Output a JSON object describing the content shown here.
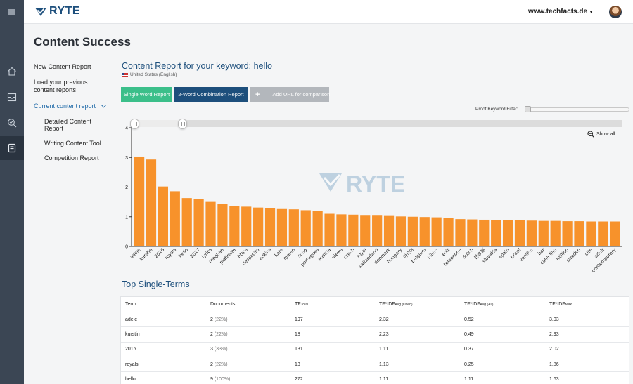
{
  "app": {
    "brand": "RYTE",
    "domain": "www.techfacts.de",
    "page_title": "Content Success"
  },
  "colors": {
    "rail": "#3b4654",
    "brand": "#1d4f7c",
    "bar": "#f7922b",
    "green_button": "#3bbf8a",
    "gray_button": "#b3b7bc"
  },
  "rail_icons": [
    "menu-icon",
    "home-icon",
    "inbox-icon",
    "search-check-icon",
    "document-icon"
  ],
  "left_nav": {
    "items": [
      {
        "label": "New Content Report"
      },
      {
        "label": "Load your previous"
      },
      {
        "label": "content reports"
      },
      {
        "label": "Current content report"
      },
      {
        "label": "Detailed Content"
      },
      {
        "label": "Report"
      },
      {
        "label": "Writing Content Tool"
      },
      {
        "label": "Competition Report"
      }
    ]
  },
  "report": {
    "title": "Content Report for your keyword: hello",
    "locale": "United States (English)",
    "buttons": {
      "single": "Single Word Report",
      "two_word": "2-Word Combination Report",
      "add_plus": "+",
      "add_url": "Add URL for comparison"
    },
    "filter_label": "Proof Keyword Filter:",
    "show_all": "Show all",
    "watermark": "RYTE"
  },
  "chart_data": {
    "type": "bar",
    "ylim": [
      0,
      4
    ],
    "yticks": [
      0,
      1,
      2,
      3,
      4
    ],
    "categories": [
      "adele",
      "kurstin",
      "2016",
      "royals",
      "hello",
      "2017",
      "lyrics",
      "meghan",
      "platinum",
      "https",
      "despacito",
      "adkins",
      "kate",
      "queen",
      "song",
      "portugués",
      "austria",
      "views",
      "czech",
      "royal",
      "switzerland",
      "denmark",
      "hungary",
      "한국어",
      "belgium",
      "piano",
      "edit",
      "telephone",
      "dutch",
      "日本語",
      "slovakia",
      "spain",
      "brazil",
      "version",
      "bar",
      "canadian",
      "million",
      "sweden",
      "cite",
      "adult",
      "contemporary"
    ],
    "values": [
      3.03,
      2.93,
      2.02,
      1.86,
      1.63,
      1.6,
      1.5,
      1.43,
      1.37,
      1.34,
      1.31,
      1.29,
      1.26,
      1.25,
      1.22,
      1.2,
      1.1,
      1.08,
      1.07,
      1.06,
      1.06,
      1.05,
      1.01,
      1.0,
      0.99,
      0.98,
      0.96,
      0.92,
      0.91,
      0.9,
      0.89,
      0.88,
      0.88,
      0.87,
      0.86,
      0.86,
      0.85,
      0.85,
      0.84,
      0.84,
      0.84
    ]
  },
  "table": {
    "section_title": "Top Single-Terms",
    "headers": [
      {
        "main": "Term",
        "sub": ""
      },
      {
        "main": "Documents",
        "sub": ""
      },
      {
        "main": "TF",
        "sub": "Total"
      },
      {
        "main": "TF*IDF",
        "sub": "Avg (Used)"
      },
      {
        "main": "TF*IDF",
        "sub": "Avg (All)"
      },
      {
        "main": "TF*IDF",
        "sub": "Max"
      }
    ],
    "rows": [
      {
        "term": "adele",
        "docs": "2",
        "docs_pct": "(22%)",
        "tf": "197",
        "avg_used": "2.32",
        "avg_all": "0.52",
        "max": "3.03"
      },
      {
        "term": "kurstin",
        "docs": "2",
        "docs_pct": "(22%)",
        "tf": "18",
        "avg_used": "2.23",
        "avg_all": "0.49",
        "max": "2.93"
      },
      {
        "term": "2016",
        "docs": "3",
        "docs_pct": "(33%)",
        "tf": "131",
        "avg_used": "1.11",
        "avg_all": "0.37",
        "max": "2.02"
      },
      {
        "term": "royals",
        "docs": "2",
        "docs_pct": "(22%)",
        "tf": "13",
        "avg_used": "1.13",
        "avg_all": "0.25",
        "max": "1.86"
      },
      {
        "term": "hello",
        "docs": "9",
        "docs_pct": "(100%)",
        "tf": "272",
        "avg_used": "1.11",
        "avg_all": "1.11",
        "max": "1.63"
      }
    ]
  }
}
